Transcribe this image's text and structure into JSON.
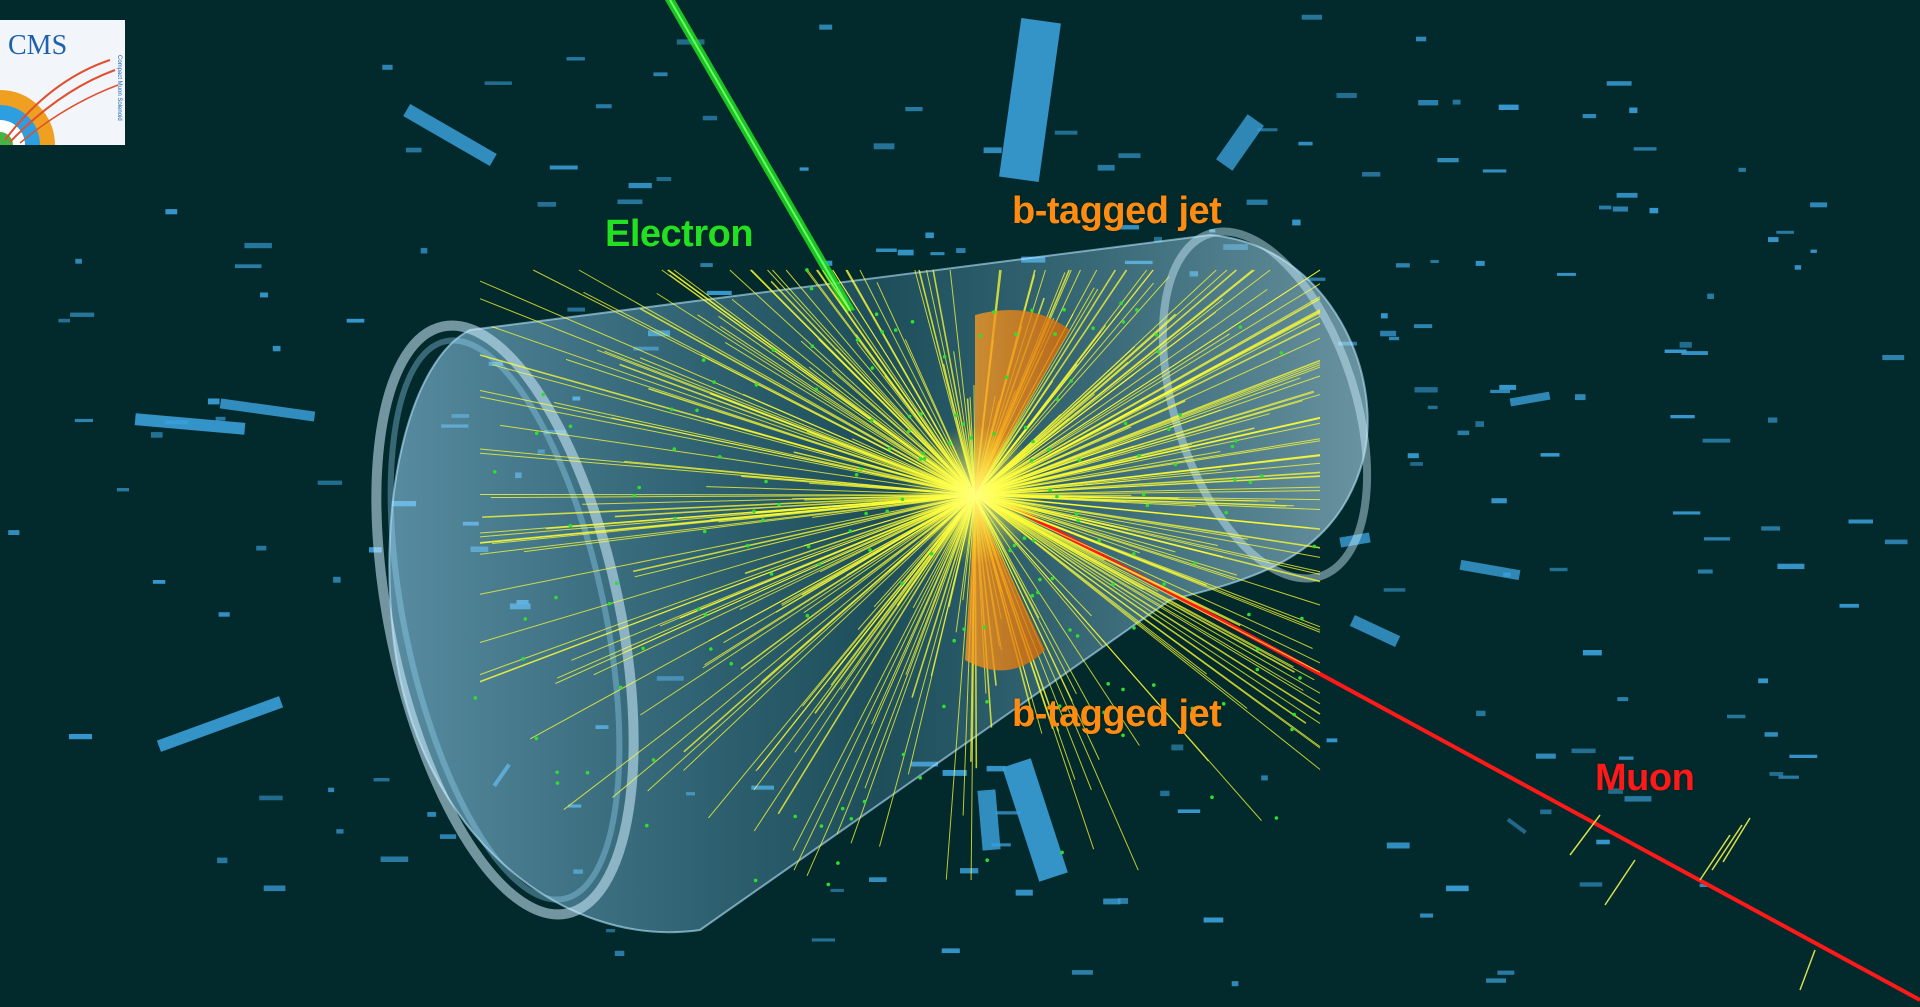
{
  "logo": {
    "text": "CMS",
    "subtitle": "Compact Muon Solenoid"
  },
  "labels": {
    "electron": "Electron",
    "jet_top": "b-tagged jet",
    "jet_bottom": "b-tagged jet",
    "muon": "Muon"
  },
  "colors": {
    "background": "#02292b",
    "electron": "#22dd22",
    "jet": "#ff8c10",
    "muon": "#ff1a1a",
    "tracks": "#ffff33",
    "calorimeter": "#3a9fd8",
    "tracker_barrel": "#8fd0ff"
  }
}
